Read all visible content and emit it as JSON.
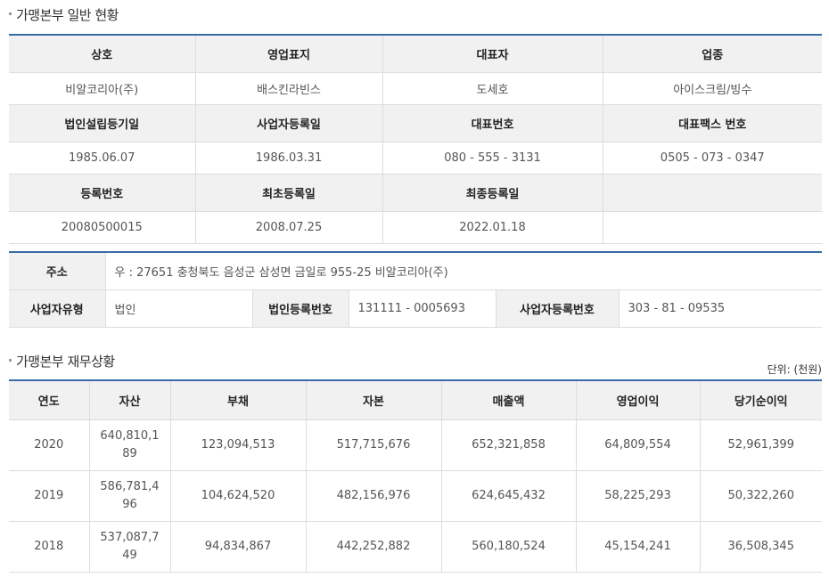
{
  "general_title": "가맹본부 일반 현황",
  "general": {
    "h1": [
      "상호",
      "영업표지",
      "대표자",
      "업종"
    ],
    "v1": [
      "비알코리아(주)",
      "배스킨라빈스",
      "도세호",
      "아이스크림/빙수"
    ],
    "h2": [
      "법인설립등기일",
      "사업자등록일",
      "대표번호",
      "대표팩스 번호"
    ],
    "v2": [
      "1985.06.07",
      "1986.03.31",
      "080 - 555 - 3131",
      "0505 - 073 - 0347"
    ],
    "h3": [
      "등록번호",
      "최초등록일",
      "최종등록일",
      ""
    ],
    "v3": [
      "20080500015",
      "2008.07.25",
      "2022.01.18",
      ""
    ]
  },
  "address": {
    "addr_label": "주소",
    "addr_value": "우 : 27651 충청북도 음성군 삼성면 금일로 955-25 비알코리아(주)",
    "type_label": "사업자유형",
    "type_value": "법인",
    "corp_label": "법인등록번호",
    "corp_value": "131111 - 0005693",
    "biz_label": "사업자등록번호",
    "biz_value": "303 - 81 - 09535"
  },
  "finance_title": "가맹본부 재무상황",
  "finance_unit": "단위: (천원)",
  "finance": {
    "headers": [
      "연도",
      "자산",
      "부채",
      "자본",
      "매출액",
      "영업이익",
      "당기순이익"
    ],
    "rows": [
      [
        "2020",
        "640,810,189",
        "123,094,513",
        "517,715,676",
        "652,321,858",
        "64,809,554",
        "52,961,399"
      ],
      [
        "2019",
        "586,781,496",
        "104,624,520",
        "482,156,976",
        "624,645,432",
        "58,225,293",
        "50,322,260"
      ],
      [
        "2018",
        "537,087,749",
        "94,834,867",
        "442,252,882",
        "560,180,524",
        "45,154,241",
        "36,508,345"
      ]
    ]
  }
}
